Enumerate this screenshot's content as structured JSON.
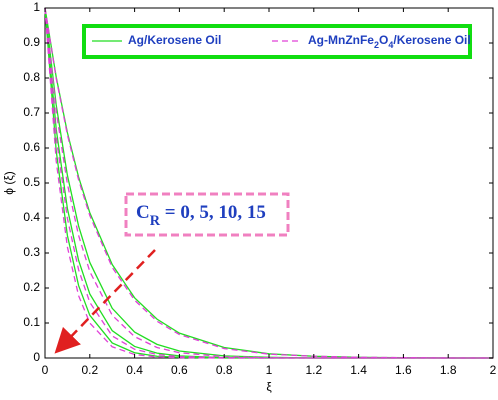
{
  "chart_data": {
    "type": "line",
    "xlabel": "ξ",
    "ylabel": "ϕ (ξ)",
    "x": [
      0,
      0.05,
      0.1,
      0.15,
      0.2,
      0.3,
      0.4,
      0.5,
      0.6,
      0.8,
      1.0,
      1.2,
      1.4,
      1.6,
      1.8,
      2.0
    ],
    "series": [
      {
        "name": "Ag/Kerosene Oil",
        "color": "#22dd22",
        "linestyle": "solid",
        "curves": [
          [
            1,
            0.803,
            0.644,
            0.517,
            0.415,
            0.267,
            0.172,
            0.111,
            0.071,
            0.03,
            0.012,
            0.005,
            0.002,
            0.001,
            0,
            0
          ],
          [
            1,
            0.723,
            0.522,
            0.377,
            0.273,
            0.142,
            0.074,
            0.039,
            0.02,
            0.006,
            0.002,
            0,
            0,
            0,
            0,
            0
          ],
          [
            1,
            0.654,
            0.427,
            0.279,
            0.183,
            0.078,
            0.033,
            0.014,
            0.006,
            0.001,
            0,
            0,
            0,
            0,
            0,
            0
          ],
          [
            1,
            0.592,
            0.35,
            0.207,
            0.122,
            0.043,
            0.015,
            0.005,
            0.002,
            0,
            0,
            0,
            0,
            0,
            0,
            0
          ]
        ]
      },
      {
        "name": "Ag-MnZnFe2O4/Kerosene Oil",
        "color": "#e040d8",
        "linestyle": "dashed",
        "curves": [
          [
            1,
            0.799,
            0.638,
            0.509,
            0.407,
            0.259,
            0.165,
            0.105,
            0.067,
            0.027,
            0.011,
            0.005,
            0.002,
            0.001,
            0,
            0
          ],
          [
            1,
            0.705,
            0.497,
            0.35,
            0.247,
            0.122,
            0.061,
            0.03,
            0.015,
            0.004,
            0.001,
            0,
            0,
            0,
            0,
            0
          ],
          [
            1,
            0.631,
            0.399,
            0.252,
            0.159,
            0.063,
            0.025,
            0.01,
            0.004,
            0.001,
            0,
            0,
            0,
            0,
            0,
            0
          ],
          [
            1,
            0.563,
            0.317,
            0.178,
            0.1,
            0.032,
            0.01,
            0.003,
            0.001,
            0,
            0,
            0,
            0,
            0,
            0,
            0
          ]
        ]
      }
    ],
    "annotation": "CR = 0, 5, 10, 15",
    "xlim": [
      0,
      2
    ],
    "xticks": [
      0,
      0.2,
      0.4,
      0.6,
      0.8,
      1,
      1.2,
      1.4,
      1.6,
      1.8,
      2
    ],
    "ylim": [
      0,
      1
    ],
    "yticks": [
      0,
      0.1,
      0.2,
      0.3,
      0.4,
      0.5,
      0.6,
      0.7,
      0.8,
      0.9,
      1
    ],
    "grid": false
  }
}
